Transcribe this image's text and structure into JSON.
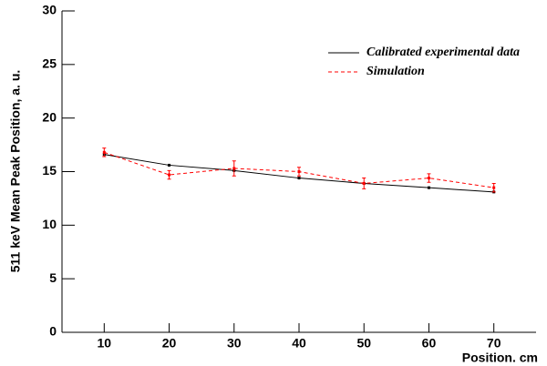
{
  "chart_data": {
    "type": "line",
    "x_label": "Position. cm",
    "y_label": "511 keV Mean Peak Position, a. u.",
    "x": [
      10,
      20,
      30,
      40,
      50,
      60,
      70
    ],
    "series": [
      {
        "name": "Calibrated experimental data",
        "color": "#000000",
        "dash": false,
        "values": [
          16.6,
          15.6,
          15.1,
          14.4,
          13.9,
          13.5,
          13.1
        ]
      },
      {
        "name": "Simulation",
        "color": "#ff0000",
        "dash": true,
        "values": [
          16.8,
          14.7,
          15.3,
          15.0,
          13.9,
          14.4,
          13.5
        ],
        "errors": [
          0.4,
          0.4,
          0.7,
          0.4,
          0.5,
          0.4,
          0.4
        ]
      }
    ],
    "xlim": [
      3.5,
      76.5
    ],
    "xticks": [
      10,
      20,
      30,
      40,
      50,
      60,
      70
    ],
    "ylim": [
      0,
      30
    ],
    "yticks": [
      0,
      5,
      10,
      15,
      20,
      25,
      30
    ],
    "legend": "upper right"
  }
}
